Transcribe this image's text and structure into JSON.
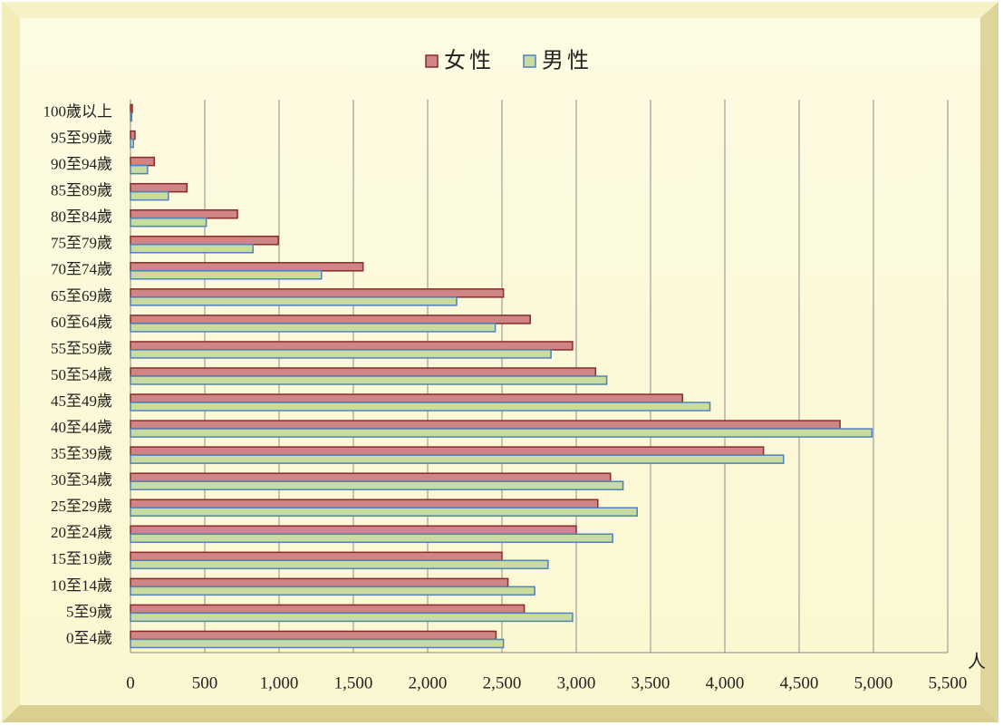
{
  "chart_data": {
    "type": "hbar",
    "categories": [
      "0至4歲",
      "5至9歲",
      "10至14歲",
      "15至19歲",
      "20至24歲",
      "25至29歲",
      "30至34歲",
      "35至39歲",
      "40至44歲",
      "45至49歲",
      "50至54歲",
      "55至59歲",
      "60至64歲",
      "65至69歲",
      "70至74歲",
      "75至79歲",
      "80至84歲",
      "85至89歲",
      "90至94歲",
      "95至99歲",
      "100歲以上"
    ],
    "series": [
      {
        "name": "女性",
        "color": "#cf8585",
        "border": "#8b2a2a",
        "values": [
          2460,
          2650,
          2540,
          2500,
          3000,
          3145,
          3230,
          4260,
          4775,
          3715,
          3130,
          2975,
          2690,
          2510,
          1565,
          995,
          720,
          380,
          160,
          30,
          12
        ]
      },
      {
        "name": "男性",
        "color": "#c9dca0",
        "border": "#4f81bd",
        "values": [
          2510,
          2975,
          2720,
          2810,
          3245,
          3410,
          3315,
          4395,
          4990,
          3900,
          3205,
          2830,
          2455,
          2195,
          1285,
          825,
          510,
          255,
          115,
          20,
          8
        ]
      }
    ],
    "x_label": "人",
    "xlim": [
      0,
      5500
    ],
    "xticks": [
      0,
      500,
      {
        "value": 1000,
        "label": "1,000"
      },
      {
        "value": 1500,
        "label": "1,500"
      },
      {
        "value": 2000,
        "label": "2,000"
      },
      {
        "value": 2500,
        "label": "2,500"
      },
      {
        "value": 3000,
        "label": "3,000"
      },
      {
        "value": 3500,
        "label": "3,500"
      },
      {
        "value": 4000,
        "label": "4,000"
      },
      {
        "value": 4500,
        "label": "4,500"
      },
      {
        "value": 5000,
        "label": "5,000"
      },
      {
        "value": 5500,
        "label": "5,500"
      }
    ],
    "grid": true,
    "legend": "top"
  }
}
